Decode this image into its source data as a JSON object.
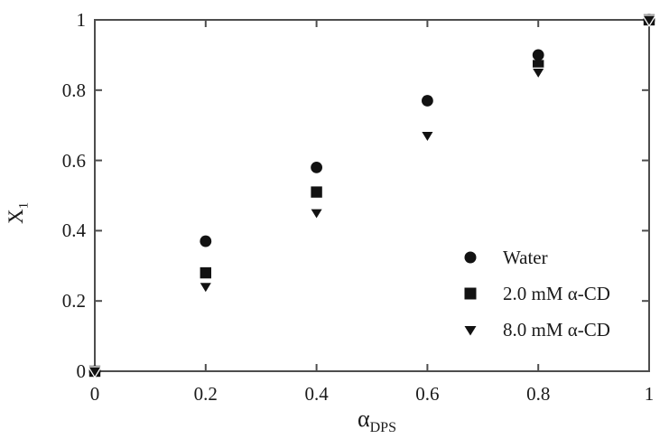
{
  "figure": {
    "background": "#ffffff",
    "frame_color": "#4d4d4d",
    "marker_color": "#121212",
    "marker_outline": "#ffffff",
    "text_color": "#1a1a1a"
  },
  "axes": {
    "y_label_main": "X",
    "y_label_sub": "1",
    "x_label_main": "α",
    "x_label_sub": "DPS",
    "x_ticks": [
      {
        "value": 0,
        "label": "0"
      },
      {
        "value": 0.2,
        "label": "0.2"
      },
      {
        "value": 0.4,
        "label": "0.4"
      },
      {
        "value": 0.6,
        "label": "0.6"
      },
      {
        "value": 0.8,
        "label": "0.8"
      },
      {
        "value": 1,
        "label": "1"
      }
    ],
    "y_ticks": [
      {
        "value": 0,
        "label": "0"
      },
      {
        "value": 0.2,
        "label": "0.2"
      },
      {
        "value": 0.4,
        "label": "0.4"
      },
      {
        "value": 0.6,
        "label": "0.6"
      },
      {
        "value": 0.8,
        "label": "0.8"
      },
      {
        "value": 1,
        "label": "1"
      }
    ]
  },
  "legend": {
    "items": [
      {
        "marker": "circle",
        "label": "Water"
      },
      {
        "marker": "square",
        "label": "2.0 mM α-CD"
      },
      {
        "marker": "triangle-down",
        "label": "8.0 mM α-CD"
      }
    ]
  },
  "chart_data": {
    "type": "scatter",
    "title": "",
    "xlabel": "α_DPS",
    "ylabel": "X_1",
    "xlim": [
      0,
      1
    ],
    "ylim": [
      0,
      1
    ],
    "grid": false,
    "legend_position": "inside lower right",
    "x": [
      0,
      0.2,
      0.4,
      0.6,
      0.8,
      1
    ],
    "series": [
      {
        "name": "Water",
        "marker": "circle",
        "values": [
          0,
          0.37,
          0.58,
          0.77,
          0.9,
          1.0
        ]
      },
      {
        "name": "2.0 mM α-CD",
        "marker": "square",
        "values": [
          0,
          0.28,
          0.51,
          null,
          0.87,
          1.0
        ]
      },
      {
        "name": "8.0 mM α-CD",
        "marker": "triangle-down",
        "values": [
          0,
          0.24,
          0.45,
          0.67,
          0.85,
          1.0
        ]
      }
    ]
  }
}
